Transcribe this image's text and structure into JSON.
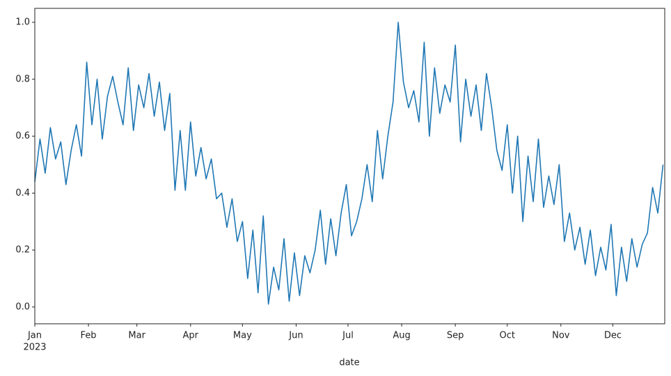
{
  "chart_data": {
    "type": "line",
    "xlabel": "date",
    "year_label": "2023",
    "series": [
      {
        "color": "#1f77b4",
        "values": [
          0.44,
          0.59,
          0.47,
          0.63,
          0.52,
          0.58,
          0.43,
          0.55,
          0.64,
          0.53,
          0.86,
          0.64,
          0.8,
          0.59,
          0.74,
          0.81,
          0.72,
          0.64,
          0.84,
          0.62,
          0.78,
          0.7,
          0.82,
          0.67,
          0.79,
          0.62,
          0.75,
          0.41,
          0.62,
          0.41,
          0.65,
          0.46,
          0.56,
          0.45,
          0.52,
          0.38,
          0.4,
          0.28,
          0.38,
          0.23,
          0.3,
          0.1,
          0.27,
          0.05,
          0.32,
          0.01,
          0.14,
          0.06,
          0.24,
          0.02,
          0.19,
          0.04,
          0.18,
          0.12,
          0.2,
          0.34,
          0.15,
          0.31,
          0.18,
          0.33,
          0.43,
          0.25,
          0.3,
          0.38,
          0.5,
          0.37,
          0.62,
          0.45,
          0.6,
          0.72,
          1.0,
          0.79,
          0.7,
          0.76,
          0.65,
          0.93,
          0.6,
          0.84,
          0.68,
          0.78,
          0.72,
          0.92,
          0.58,
          0.8,
          0.67,
          0.78,
          0.62,
          0.82,
          0.7,
          0.55,
          0.48,
          0.64,
          0.4,
          0.6,
          0.3,
          0.53,
          0.37,
          0.59,
          0.35,
          0.46,
          0.36,
          0.5,
          0.23,
          0.33,
          0.2,
          0.28,
          0.15,
          0.27,
          0.11,
          0.21,
          0.13,
          0.29,
          0.04,
          0.21,
          0.09,
          0.24,
          0.14,
          0.22,
          0.26,
          0.42,
          0.33,
          0.5
        ]
      }
    ],
    "xlim": [
      0,
      121.333
    ],
    "xticks": [
      {
        "value": 0,
        "label": "Jan"
      },
      {
        "value": 10.333,
        "label": "Feb"
      },
      {
        "value": 19.667,
        "label": "Mar"
      },
      {
        "value": 30,
        "label": "Apr"
      },
      {
        "value": 40,
        "label": "May"
      },
      {
        "value": 50.333,
        "label": "Jun"
      },
      {
        "value": 60.333,
        "label": "Jul"
      },
      {
        "value": 70.667,
        "label": "Aug"
      },
      {
        "value": 81,
        "label": "Sep"
      },
      {
        "value": 91,
        "label": "Oct"
      },
      {
        "value": 101.333,
        "label": "Nov"
      },
      {
        "value": 111.333,
        "label": "Dec"
      }
    ],
    "ylim": [
      -0.059,
      1.049
    ],
    "yticks": [
      {
        "value": 0,
        "label": "0.0"
      },
      0.2,
      0.4,
      0.6,
      0.8,
      {
        "value": 1,
        "label": "1.0"
      }
    ],
    "grid": false
  }
}
